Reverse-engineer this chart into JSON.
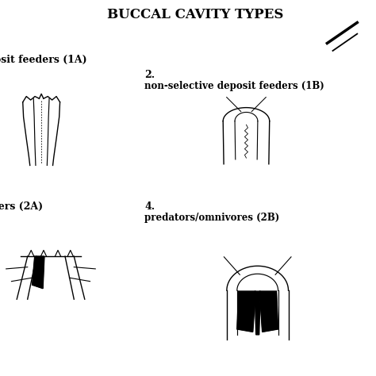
{
  "title": "BUCCAL CAVITY TYPES",
  "title_fontsize": 12,
  "title_fontweight": "bold",
  "background_color": "#ffffff",
  "label1_text": "osit feeders (1A)",
  "label2_num": "2.",
  "label2_text": "non-selective deposit feeders (1B)",
  "label3_text": "lers (2A)",
  "label4_num": "4.",
  "label4_text": "predators/omnivores (2B)",
  "label_fontsize": 8.5,
  "figsize": [
    4.74,
    4.74
  ],
  "dpi": 100
}
